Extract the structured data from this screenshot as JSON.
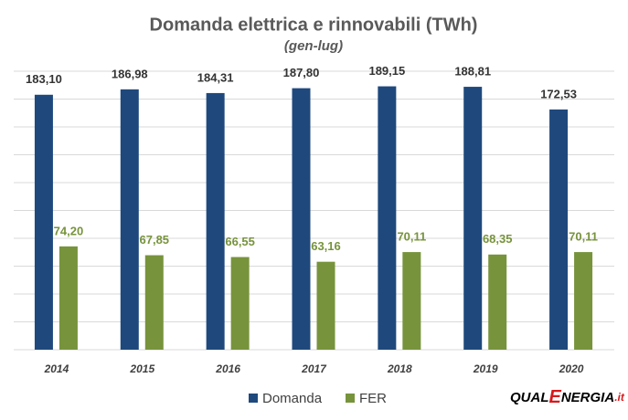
{
  "chart_data": {
    "type": "bar",
    "title": "Domanda elettrica e rinnovabili (TWh)",
    "subtitle": "(gen-lug)",
    "categories": [
      "2014",
      "2015",
      "2016",
      "2017",
      "2018",
      "2019",
      "2020"
    ],
    "series": [
      {
        "name": "Domanda",
        "color": "#1f497d",
        "values": [
          183.1,
          186.98,
          184.31,
          187.8,
          189.15,
          188.81,
          172.53
        ],
        "value_labels": [
          "183,10",
          "186,98",
          "184,31",
          "187,80",
          "189,15",
          "188,81",
          "172,53"
        ]
      },
      {
        "name": "FER",
        "color": "#77933c",
        "values": [
          74.2,
          67.85,
          66.55,
          63.16,
          70.11,
          68.35,
          70.11
        ],
        "value_labels": [
          "74,20",
          "67,85",
          "66,55",
          "63,16",
          "70,11",
          "68,35",
          "70,11"
        ]
      }
    ],
    "ylim": [
      0,
      200
    ],
    "yticks": [
      0,
      20,
      40,
      60,
      80,
      100,
      120,
      140,
      160,
      180,
      200
    ],
    "grid": true,
    "legend": "bottom",
    "logo": [
      "QUAL",
      "E",
      "NERGIA",
      ".it"
    ]
  }
}
